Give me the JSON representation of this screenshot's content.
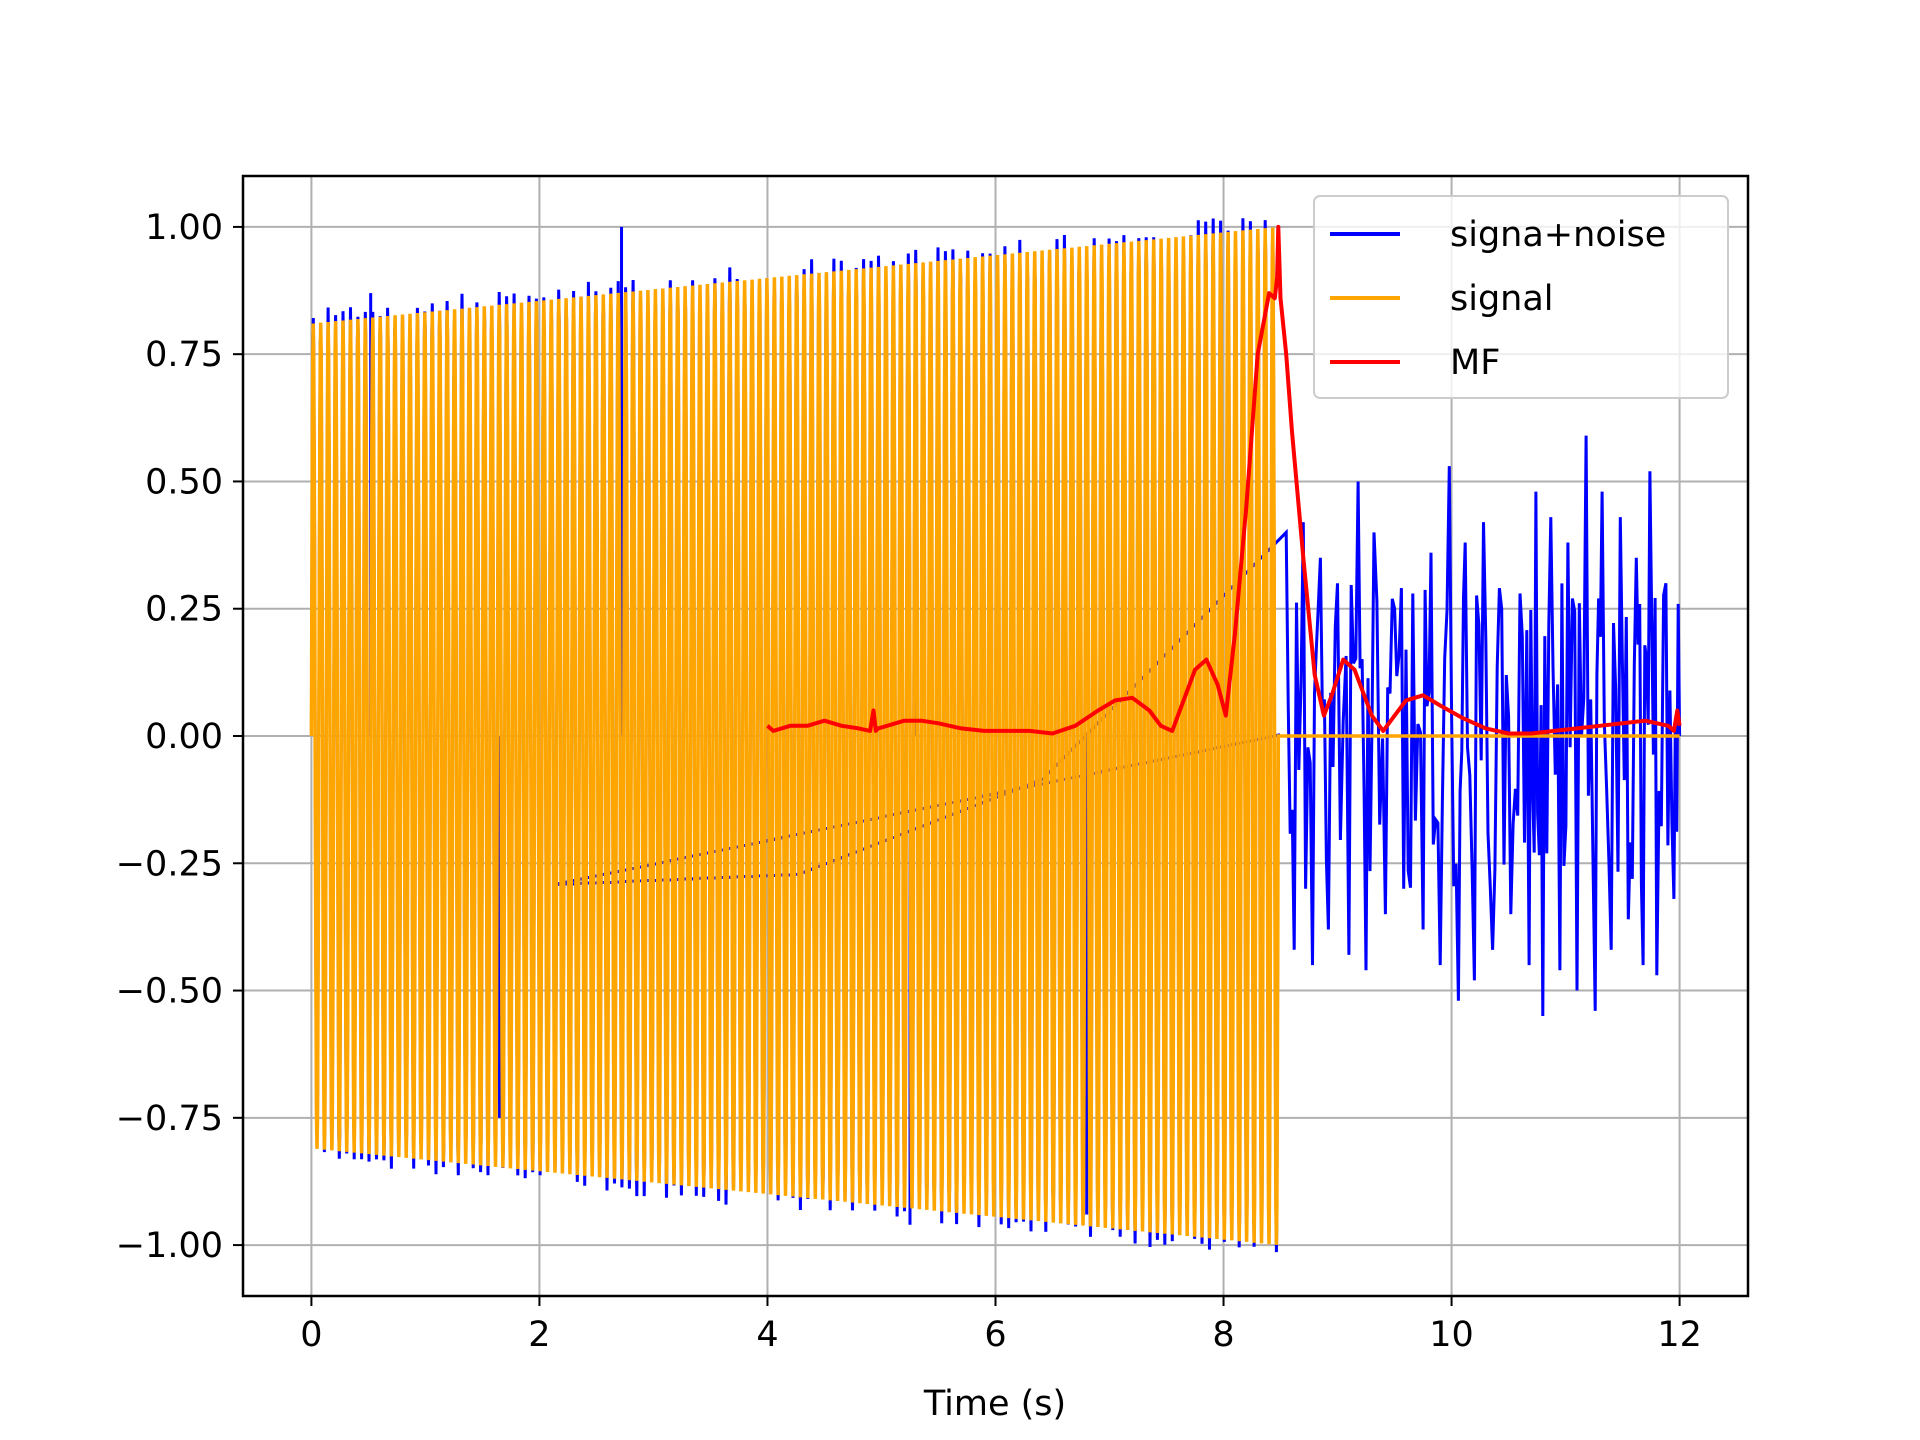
{
  "chart_data": {
    "type": "line",
    "title": "",
    "xlabel": "Time (s)",
    "ylabel": "",
    "xlim": [
      -0.6,
      12.6
    ],
    "ylim": [
      -1.1,
      1.1
    ],
    "xticks": [
      0,
      2,
      4,
      6,
      8,
      10,
      12
    ],
    "xtick_labels": [
      "0",
      "2",
      "4",
      "6",
      "8",
      "10",
      "12"
    ],
    "yticks": [
      1.0,
      0.75,
      0.5,
      0.25,
      0.0,
      -0.25,
      -0.5,
      -0.75,
      -1.0
    ],
    "ytick_labels": [
      "1.00",
      "0.75",
      "0.50",
      "0.25",
      "0.00",
      "−0.25",
      "−0.50",
      "−0.75",
      "−1.00"
    ],
    "grid": true,
    "legend_position": "top-right",
    "series": [
      {
        "name": "signa+noise",
        "color": "#0000ff",
        "description_points": {
          "signal_region": [
            0,
            8.5
          ],
          "noise_region": [
            8.5,
            12
          ],
          "spikes": [
            [
              0.52,
              0.87
            ],
            [
              2.72,
              1.0
            ],
            [
              5.25,
              -0.96
            ],
            [
              5.3,
              0.9
            ],
            [
              1.65,
              -0.75
            ],
            [
              6.8,
              -0.94
            ]
          ],
          "noise_peaks": [
            [
              8.55,
              0.4
            ],
            [
              8.62,
              -0.42
            ],
            [
              8.7,
              0.42
            ],
            [
              8.78,
              -0.45
            ],
            [
              8.85,
              0.35
            ],
            [
              8.92,
              -0.38
            ],
            [
              9.0,
              0.3
            ],
            [
              9.1,
              -0.43
            ],
            [
              9.18,
              0.5
            ],
            [
              9.25,
              -0.46
            ],
            [
              9.32,
              0.4
            ],
            [
              9.42,
              -0.35
            ],
            [
              9.5,
              0.25
            ],
            [
              9.58,
              -0.3
            ],
            [
              9.66,
              0.28
            ],
            [
              9.75,
              -0.38
            ],
            [
              9.82,
              0.36
            ],
            [
              9.9,
              -0.45
            ],
            [
              9.98,
              0.53
            ],
            [
              10.06,
              -0.52
            ],
            [
              10.12,
              0.38
            ],
            [
              10.2,
              -0.48
            ],
            [
              10.28,
              0.42
            ],
            [
              10.36,
              -0.42
            ],
            [
              10.44,
              0.25
            ],
            [
              10.52,
              -0.35
            ],
            [
              10.6,
              0.28
            ],
            [
              10.68,
              -0.45
            ],
            [
              10.74,
              0.48
            ],
            [
              10.8,
              -0.55
            ],
            [
              10.87,
              0.43
            ],
            [
              10.95,
              -0.46
            ],
            [
              11.02,
              0.38
            ],
            [
              11.1,
              -0.5
            ],
            [
              11.18,
              0.59
            ],
            [
              11.26,
              -0.54
            ],
            [
              11.32,
              0.48
            ],
            [
              11.4,
              -0.42
            ],
            [
              11.48,
              0.43
            ],
            [
              11.55,
              -0.36
            ],
            [
              11.62,
              0.35
            ],
            [
              11.68,
              -0.45
            ],
            [
              11.74,
              0.52
            ],
            [
              11.8,
              -0.47
            ],
            [
              11.88,
              0.3
            ],
            [
              11.95,
              -0.32
            ],
            [
              12.0,
              0.0
            ]
          ]
        }
      },
      {
        "name": "signal",
        "color": "#ffa500",
        "description_points": {
          "chirp_start": 0.0,
          "chirp_end": 8.48,
          "amplitude_start": 0.81,
          "amplitude_end": 1.0,
          "cycles": 130,
          "after_end_value": 0.0,
          "end_time": 12.0
        }
      },
      {
        "name": "MF",
        "color": "#ff0000",
        "x": [
          4.0,
          4.05,
          4.2,
          4.35,
          4.5,
          4.65,
          4.8,
          4.9,
          4.93,
          4.95,
          4.97,
          5.05,
          5.2,
          5.35,
          5.5,
          5.7,
          5.9,
          6.1,
          6.3,
          6.5,
          6.7,
          6.9,
          7.05,
          7.2,
          7.35,
          7.45,
          7.55,
          7.65,
          7.75,
          7.85,
          7.95,
          8.02,
          8.1,
          8.2,
          8.3,
          8.4,
          8.45,
          8.47,
          8.48,
          8.5,
          8.55,
          8.6,
          8.7,
          8.8,
          8.88,
          8.95,
          9.05,
          9.15,
          9.3,
          9.4,
          9.5,
          9.6,
          9.75,
          9.9,
          10.1,
          10.3,
          10.5,
          10.7,
          10.9,
          11.1,
          11.3,
          11.5,
          11.7,
          11.9,
          11.95,
          11.98,
          12.0
        ],
        "y": [
          0.02,
          0.01,
          0.02,
          0.02,
          0.03,
          0.02,
          0.015,
          0.01,
          0.05,
          0.01,
          0.015,
          0.02,
          0.03,
          0.03,
          0.025,
          0.015,
          0.01,
          0.01,
          0.01,
          0.005,
          0.02,
          0.05,
          0.07,
          0.075,
          0.05,
          0.02,
          0.01,
          0.07,
          0.13,
          0.15,
          0.1,
          0.04,
          0.2,
          0.45,
          0.75,
          0.87,
          0.86,
          0.9,
          1.0,
          0.86,
          0.75,
          0.6,
          0.35,
          0.12,
          0.04,
          0.08,
          0.15,
          0.13,
          0.04,
          0.01,
          0.04,
          0.07,
          0.08,
          0.06,
          0.035,
          0.015,
          0.005,
          0.005,
          0.01,
          0.015,
          0.02,
          0.025,
          0.03,
          0.02,
          0.01,
          0.05,
          0.02
        ]
      }
    ]
  }
}
